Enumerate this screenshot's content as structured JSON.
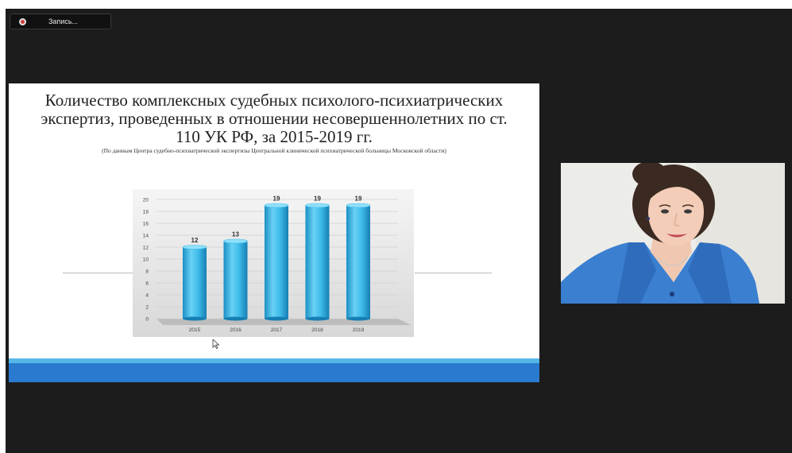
{
  "recording": {
    "label": "Запись..."
  },
  "slide": {
    "title": "Количество комплексных судебных психолого-психиатрических экспертиз, проведенных в отношении несовершеннолетних по ст. 110 УК РФ, за 2015-2019 гг.",
    "subtitle": "(По данным Центра судебно-психиатрической экспертизы Центральной клинической психиатрической больницы Московской области)"
  },
  "chart_data": {
    "type": "bar",
    "categories": [
      "2015",
      "2016",
      "2017",
      "2018",
      "2019"
    ],
    "values": [
      12,
      13,
      19,
      19,
      19
    ],
    "yticks": [
      "0",
      "2",
      "4",
      "6",
      "8",
      "10",
      "12",
      "14",
      "16",
      "18",
      "20"
    ],
    "ylim": [
      0,
      20
    ],
    "grid": true,
    "style": "3d-cylinder",
    "bar_color": "#2fb3e6"
  },
  "webcam": {
    "description_icon": "participant-video"
  }
}
